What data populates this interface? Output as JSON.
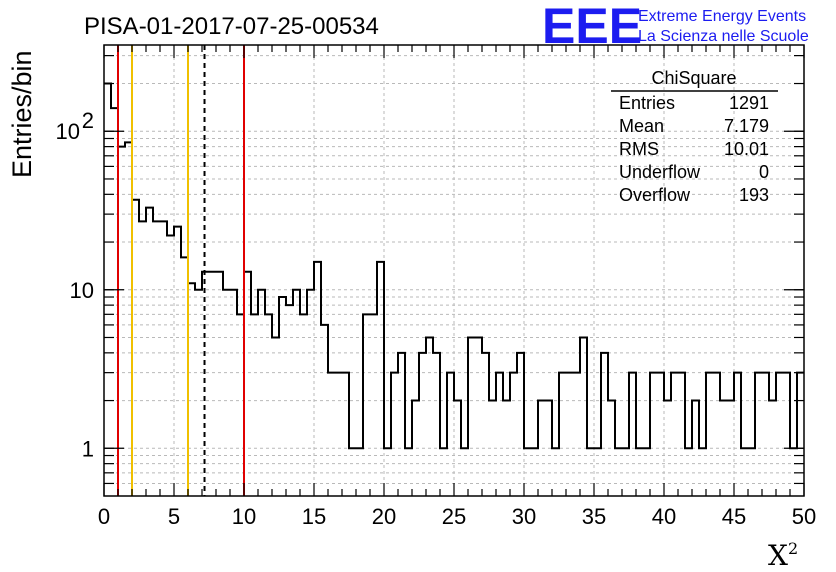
{
  "header": {
    "title": "PISA-01-2017-07-25-00534",
    "logo_text": "EEE",
    "logo_line1": "Extreme Energy Events",
    "logo_line2": "La Scienza nelle Scuole"
  },
  "stats_box": {
    "name": "ChiSquare",
    "rows": [
      {
        "label": "Entries",
        "value": "1291"
      },
      {
        "label": "Mean",
        "value": "7.179"
      },
      {
        "label": "RMS",
        "value": "10.01"
      },
      {
        "label": "Underflow",
        "value": "0"
      },
      {
        "label": "Overflow",
        "value": "193"
      }
    ]
  },
  "chart_data": {
    "type": "histogram",
    "xlabel": "X",
    "xlabel_superscript": "2",
    "ylabel": "Entries/bin",
    "xlim": [
      0,
      50
    ],
    "ylim": [
      0.5,
      350
    ],
    "yscale": "log",
    "grid": true,
    "bin_width": 0.5,
    "x_ticks": [
      0,
      5,
      10,
      15,
      20,
      25,
      30,
      35,
      40,
      45,
      50
    ],
    "y_ticks": [
      {
        "value": 1,
        "label": "1"
      },
      {
        "value": 10,
        "label": "10"
      },
      {
        "value": 100,
        "label": "10",
        "exp": "2"
      }
    ],
    "values": [
      200,
      140,
      80,
      85,
      37,
      27,
      33,
      27,
      27,
      22,
      25,
      16,
      11,
      10,
      13,
      13,
      13,
      10,
      10,
      7,
      13,
      7,
      10,
      7,
      5,
      9,
      8,
      10,
      7,
      10,
      15,
      6,
      3,
      3,
      3,
      1,
      1,
      7,
      7,
      15,
      1,
      3,
      4,
      1,
      2,
      4,
      5,
      4,
      1,
      3,
      2,
      1,
      5,
      5,
      4,
      2,
      3,
      2,
      3,
      4,
      1,
      1,
      2,
      2,
      1,
      3,
      3,
      3,
      5,
      1,
      1,
      4,
      2,
      1,
      1,
      3,
      1,
      1,
      3,
      3,
      2,
      3,
      3,
      1,
      2,
      1,
      3,
      3,
      2,
      2,
      3,
      1,
      1,
      3,
      3,
      2,
      3,
      3,
      1,
      3
    ],
    "vertical_lines": [
      {
        "x": 1.0,
        "color": "#e00000",
        "style": "solid"
      },
      {
        "x": 2.0,
        "color": "#f0c000",
        "style": "solid"
      },
      {
        "x": 6.0,
        "color": "#f0c000",
        "style": "solid"
      },
      {
        "x": 7.18,
        "color": "#000000",
        "style": "dashed"
      },
      {
        "x": 10.0,
        "color": "#e00000",
        "style": "solid"
      }
    ]
  }
}
